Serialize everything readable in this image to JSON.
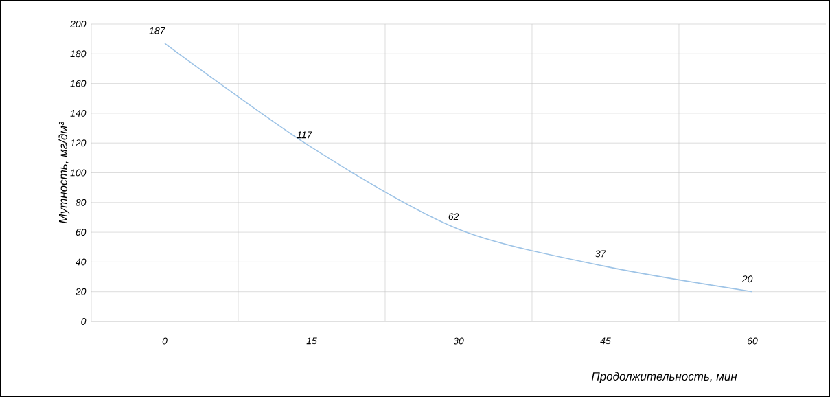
{
  "chart_data": {
    "type": "line",
    "xlabel": "Продолжительность, мин",
    "ylabel": "Мутность, мг/дм³",
    "categories": [
      "0",
      "15",
      "30",
      "45",
      "60"
    ],
    "values": [
      187,
      117,
      62,
      37,
      20
    ],
    "color": "#9dc3e6",
    "ylim": [
      0,
      200
    ],
    "yticks": [
      0,
      20,
      40,
      60,
      80,
      100,
      120,
      140,
      160,
      180,
      200
    ],
    "grid": true,
    "marker": "none",
    "line_style": "solid",
    "data_labels": true
  }
}
